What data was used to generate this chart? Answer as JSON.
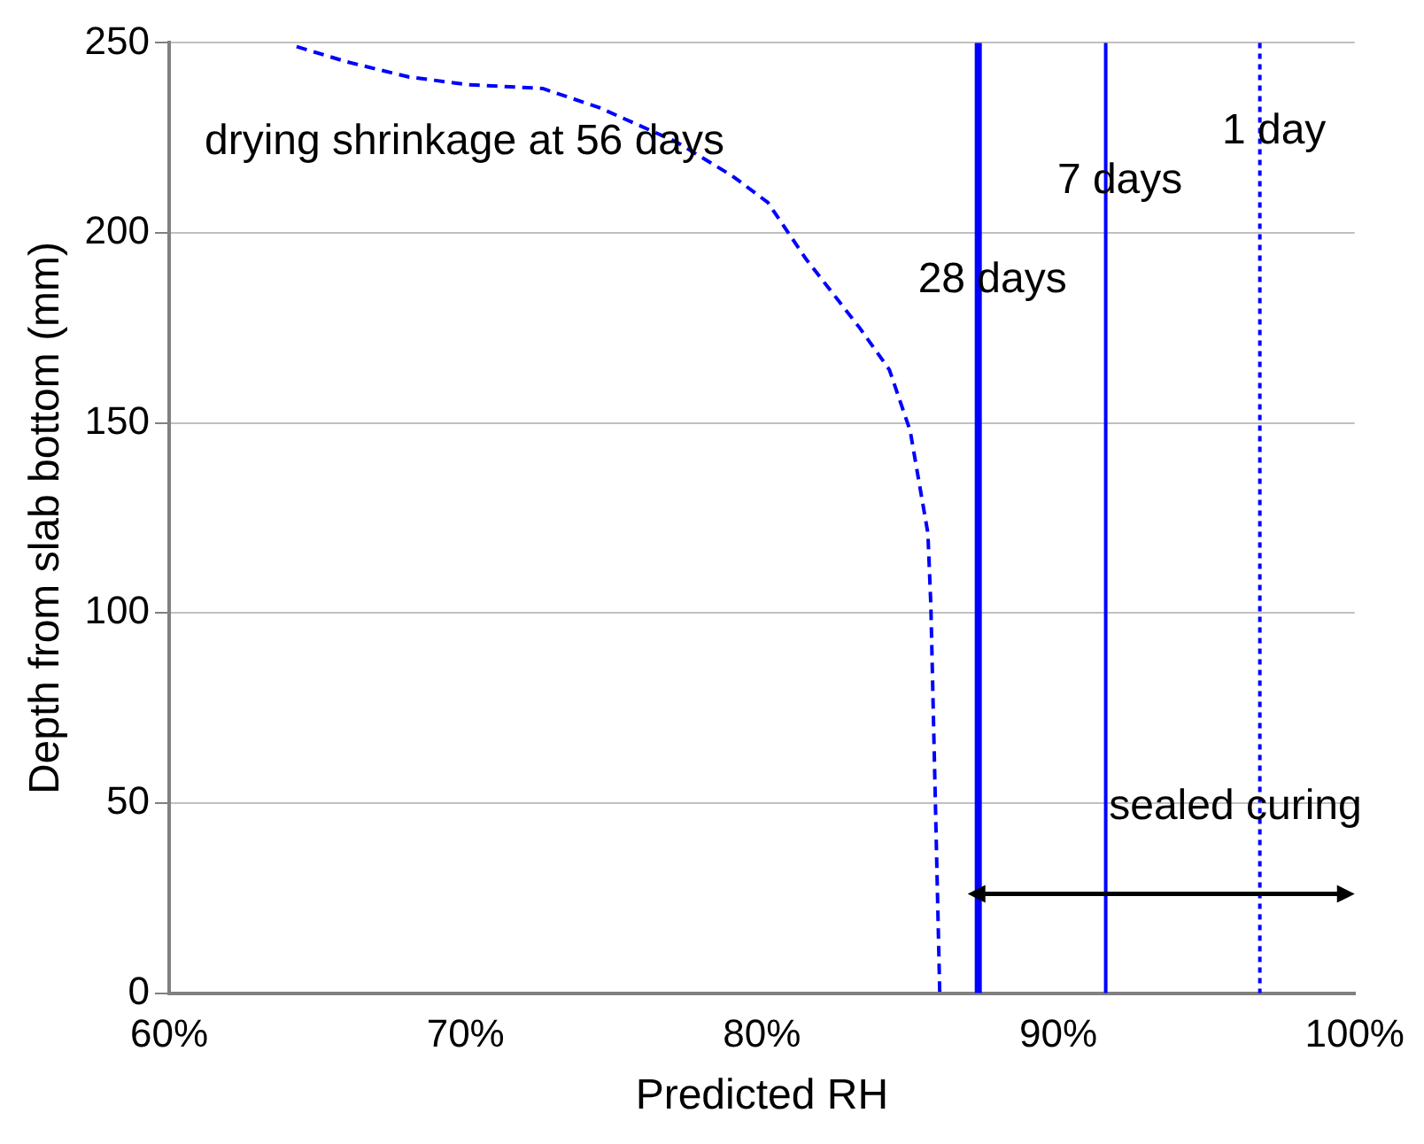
{
  "chart_data": {
    "type": "line",
    "xlabel": "Predicted RH",
    "ylabel": "Depth from slab bottom (mm)",
    "xlim": [
      60,
      100
    ],
    "xticks": [
      {
        "value": 60,
        "label": "60%"
      },
      {
        "value": 70,
        "label": "70%"
      },
      {
        "value": 80,
        "label": "80%"
      },
      {
        "value": 90,
        "label": "90%"
      },
      {
        "value": 100,
        "label": "100%"
      }
    ],
    "ylim": [
      0,
      250
    ],
    "yticks": [
      0,
      50,
      100,
      150,
      200,
      250
    ],
    "grid": "y",
    "legend": false,
    "marker": "none",
    "series": [
      {
        "color": "#0000ff",
        "line_style": "dashed",
        "x": [
          64.3,
          66.0,
          68.1,
          70.1,
          72.6,
          74.5,
          77.1,
          79.0,
          80.2,
          81.5,
          83.3,
          84.3,
          85.0,
          85.6,
          85.7,
          85.8,
          86.0
        ],
        "values": [
          249,
          245,
          241,
          239,
          238,
          233,
          224,
          215,
          208,
          193,
          175,
          164,
          148,
          121,
          102,
          68,
          0
        ]
      }
    ],
    "ref_lines": [
      {
        "axis": "x",
        "value": 96.8,
        "color": "#0000ff",
        "line_style": "dotted",
        "label": "1 day"
      },
      {
        "axis": "x",
        "value": 91.6,
        "color": "#0000ff",
        "line_style": "solid",
        "label": "7 days"
      },
      {
        "axis": "x",
        "value": 87.3,
        "color": "#0000ff",
        "line_style": "solid",
        "label": "28 days"
      }
    ],
    "annotations": [
      "drying shrinkage at 56 days",
      "sealed curing"
    ]
  }
}
